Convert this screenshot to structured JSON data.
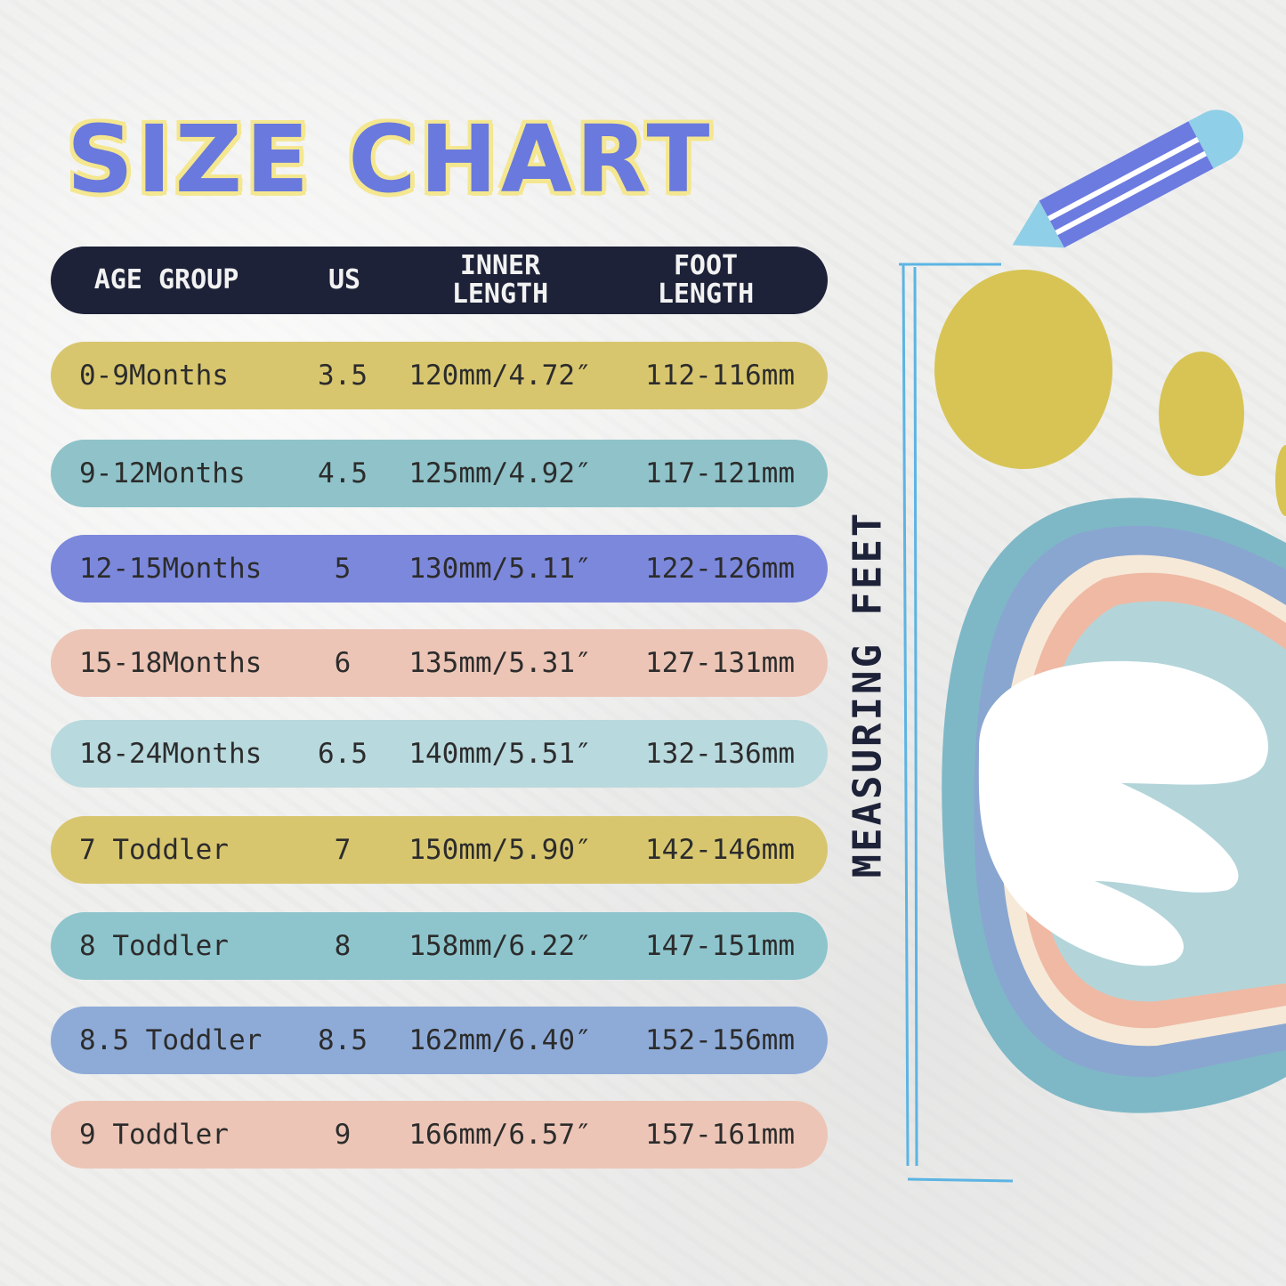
{
  "title": "SIZE CHART",
  "header": {
    "age_group": "AGE GROUP",
    "us": "US",
    "inner_length": "INNER\nLENGTH",
    "foot_length": "FOOT\nLENGTH"
  },
  "rows": [
    {
      "age": "0-9Months",
      "us": "3.5",
      "inner": "120mm/4.72″",
      "foot": "112-116mm",
      "color": "#d8c66f"
    },
    {
      "age": "9-12Months",
      "us": "4.5",
      "inner": "125mm/4.92″",
      "foot": "117-121mm",
      "color": "#8fc3c9"
    },
    {
      "age": "12-15Months",
      "us": "5",
      "inner": "130mm/5.11″",
      "foot": "122-126mm",
      "color": "#7c88dc"
    },
    {
      "age": "15-18Months",
      "us": "6",
      "inner": "135mm/5.31″",
      "foot": "127-131mm",
      "color": "#ecc5b6"
    },
    {
      "age": "18-24Months",
      "us": "6.5",
      "inner": "140mm/5.51″",
      "foot": "132-136mm",
      "color": "#b8d9de"
    },
    {
      "age": "7 Toddler",
      "us": "7",
      "inner": "150mm/5.90″",
      "foot": "142-146mm",
      "color": "#d8c66f"
    },
    {
      "age": "8 Toddler",
      "us": "8",
      "inner": "158mm/6.22″",
      "foot": "147-151mm",
      "color": "#8ec5cd"
    },
    {
      "age": "8.5 Toddler",
      "us": "8.5",
      "inner": "162mm/6.40″",
      "foot": "152-156mm",
      "color": "#8eabd8"
    },
    {
      "age": "9 Toddler",
      "us": "9",
      "inner": "166mm/6.57″",
      "foot": "157-161mm",
      "color": "#ecc5b6"
    }
  ],
  "side_label": "MEASURING FEET",
  "icons": {
    "pencil": "pencil-icon",
    "footprint": "footprint-illustration"
  }
}
